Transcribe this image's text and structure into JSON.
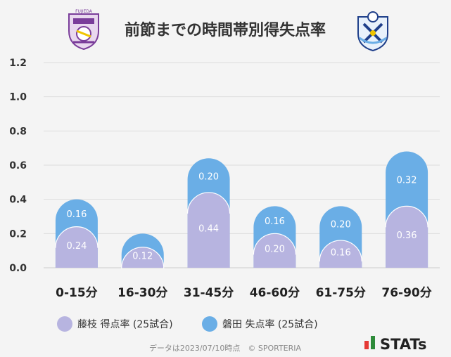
{
  "chart_data": {
    "type": "bar",
    "title": "前節までの時間帯別得失点率",
    "categories": [
      "0-15分",
      "16-30分",
      "31-45分",
      "46-60分",
      "61-75分",
      "76-90分"
    ],
    "series": [
      {
        "name": "藤枝 得点率 (25試合)",
        "values": [
          0.24,
          0.12,
          0.44,
          0.2,
          0.16,
          0.36
        ],
        "color": "#b7b4e0"
      },
      {
        "name": "磐田 失点率 (25試合)",
        "values": [
          0.16,
          0.08,
          0.2,
          0.16,
          0.2,
          0.32
        ],
        "color": "#6aaee6"
      }
    ],
    "data_labels": [
      [
        "0.24",
        "0.12",
        "0.44",
        "0.20",
        "0.16",
        "0.36"
      ],
      [
        "0.16",
        "",
        "0.20",
        "0.16",
        "0.20",
        "0.32"
      ]
    ],
    "stacked": true,
    "ylim": [
      0,
      1.2
    ],
    "yticks": [
      "0.0",
      "0.2",
      "0.4",
      "0.6",
      "0.8",
      "1.0",
      "1.2"
    ],
    "grid": true,
    "legend_position": "bottom"
  },
  "logos": {
    "left": {
      "name": "fujieda-myfc-crest",
      "text": "FUJIEDA"
    },
    "right": {
      "name": "jubilo-iwata-crest"
    }
  },
  "footer": {
    "note": "データは2023/07/10時点　© SPORTERIA",
    "brand": "STATs"
  }
}
